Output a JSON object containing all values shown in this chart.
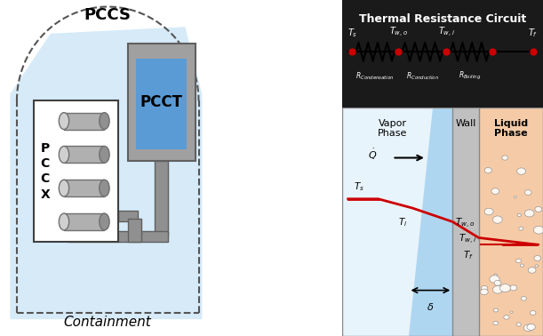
{
  "title": "Thermal Resistance Circuit",
  "pccs_label": "PCCS",
  "pcct_label": "PCCT",
  "pccx_label": "P\nC\nC\nX",
  "containment_label": "Containment",
  "vapor_label": "Vapor\nPhase",
  "wall_label": "Wall",
  "liquid_label": "Liquid\nPhase",
  "ts_label": "$T_s$",
  "two_label": "$T_{w,o}$",
  "twi_label": "$T_{w,i}$",
  "tf_label": "$T_f$",
  "ti_label": "$T_i$",
  "q_label": "$\\dot{Q}$",
  "delta_label": "$\\delta$",
  "r_condensation": "$R_{Condensation}$",
  "r_conduction": "$R_{Conduction}$",
  "r_boiling": "$R_{Boiling}$",
  "bg_left": "#d6eaf8",
  "bg_white": "#ffffff",
  "wall_color": "#c0c0c0",
  "liquid_color": "#f5cba7",
  "vapor_color": "#d6eaf8",
  "condensate_color": "#aed6f1",
  "circuit_bg": "#1a1a1a",
  "circuit_text": "#ffffff",
  "red_dot": "#cc0000",
  "red_line": "#cc0000",
  "arrow_color": "#111111",
  "gray_component": "#808080"
}
